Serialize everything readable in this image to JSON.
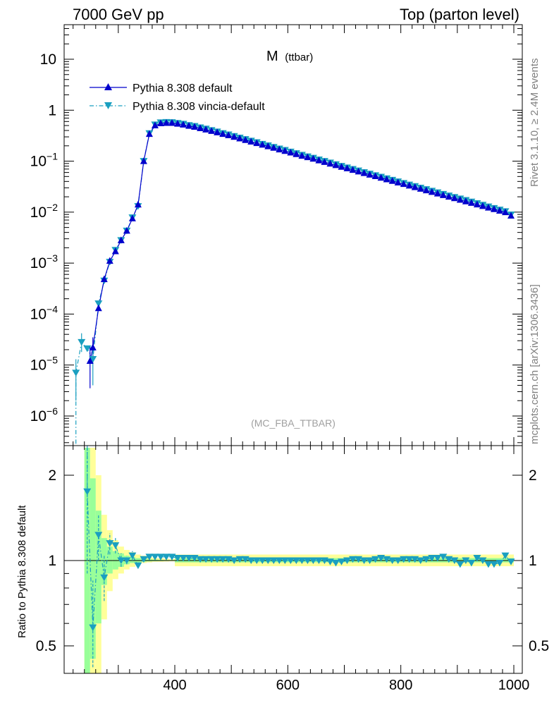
{
  "header": {
    "left": "7000 GeV pp",
    "right": "Top (parton level)"
  },
  "side_labels": {
    "rivet": "Rivet 3.1.10, ≥ 2.4M events",
    "source": "mcplots.cern.ch [arXiv:1306.3436]"
  },
  "plot_title": {
    "main": "M",
    "sub": "(ttbar)"
  },
  "analysis_label": "(MC_FBA_TTBAR)",
  "colors": {
    "series1": "#0000cc",
    "series2": "#1a9fc0",
    "band_yellow": "#ffff99",
    "band_green": "#99ff99"
  },
  "chart_data": [
    {
      "type": "line",
      "scale": "log",
      "xlim": [
        200,
        1000
      ],
      "ylim": [
        3e-07,
        40
      ],
      "x_ticks": [
        400,
        600,
        800,
        1000
      ],
      "y_tick_labels": [
        {
          "value": 10,
          "base": "10",
          "exp": ""
        },
        {
          "value": 1,
          "base": "1",
          "exp": ""
        },
        {
          "value": 0.1,
          "base": "10",
          "exp": "−1"
        },
        {
          "value": 0.01,
          "base": "10",
          "exp": "−2"
        },
        {
          "value": 0.001,
          "base": "10",
          "exp": "−3"
        },
        {
          "value": 0.0001,
          "base": "10",
          "exp": "−4"
        },
        {
          "value": 1e-05,
          "base": "10",
          "exp": "−5"
        },
        {
          "value": 1e-06,
          "base": "10",
          "exp": "−6"
        }
      ],
      "legend_position": "top-left",
      "series": [
        {
          "name": "Pythia 8.308 default",
          "marker": "triangle-up",
          "line": "solid",
          "x": [
            250,
            255,
            265,
            275,
            285,
            295,
            305,
            315,
            325,
            335,
            345,
            355,
            365,
            375,
            385,
            395,
            405,
            415,
            425,
            435,
            445,
            455,
            465,
            475,
            485,
            495,
            505,
            515,
            525,
            535,
            545,
            555,
            565,
            575,
            585,
            595,
            605,
            615,
            625,
            635,
            645,
            655,
            665,
            675,
            685,
            695,
            705,
            715,
            725,
            735,
            745,
            755,
            765,
            775,
            785,
            795,
            805,
            815,
            825,
            835,
            845,
            855,
            865,
            875,
            885,
            895,
            905,
            915,
            925,
            935,
            945,
            955,
            965,
            975,
            985,
            995
          ],
          "y": [
            1.2e-05,
            2.2e-05,
            0.00013,
            0.00048,
            0.0011,
            0.0017,
            0.0028,
            0.0043,
            0.0075,
            0.014,
            0.1,
            0.34,
            0.5,
            0.55,
            0.56,
            0.56,
            0.54,
            0.52,
            0.49,
            0.47,
            0.44,
            0.415,
            0.39,
            0.365,
            0.34,
            0.32,
            0.298,
            0.278,
            0.259,
            0.241,
            0.225,
            0.209,
            0.195,
            0.182,
            0.169,
            0.158,
            0.147,
            0.137,
            0.127,
            0.119,
            0.111,
            0.103,
            0.096,
            0.089,
            0.083,
            0.077,
            0.072,
            0.067,
            0.0625,
            0.058,
            0.054,
            0.0505,
            0.047,
            0.0438,
            0.0408,
            0.038,
            0.0354,
            0.033,
            0.0307,
            0.0286,
            0.0266,
            0.0248,
            0.0231,
            0.0215,
            0.02,
            0.0187,
            0.0174,
            0.0162,
            0.0151,
            0.0141,
            0.0131,
            0.0122,
            0.0114,
            0.0106,
            0.0099,
            0.0085
          ]
        },
        {
          "name": "Pythia 8.308 vincia-default",
          "marker": "triangle-down",
          "line": "dash-dot",
          "x": [
            225,
            235,
            245,
            255,
            265,
            275,
            285,
            295,
            305,
            315,
            325,
            335,
            345,
            355,
            365,
            375,
            385,
            395,
            405,
            415,
            425,
            435,
            445,
            455,
            465,
            475,
            485,
            495,
            505,
            515,
            525,
            535,
            545,
            555,
            565,
            575,
            585,
            595,
            605,
            615,
            625,
            635,
            645,
            655,
            665,
            675,
            685,
            695,
            705,
            715,
            725,
            735,
            745,
            755,
            765,
            775,
            785,
            795,
            805,
            815,
            825,
            835,
            845,
            855,
            865,
            875,
            885,
            895,
            905,
            915,
            925,
            935,
            945,
            955,
            965,
            975,
            985,
            995
          ],
          "y": [
            7e-06,
            2.8e-05,
            2.1e-05,
            1.3e-05,
            0.00016,
            0.00045,
            0.00105,
            0.0018,
            0.0028,
            0.0043,
            0.0078,
            0.013,
            0.1,
            0.35,
            0.52,
            0.57,
            0.58,
            0.575,
            0.555,
            0.535,
            0.505,
            0.485,
            0.455,
            0.43,
            0.403,
            0.377,
            0.352,
            0.331,
            0.308,
            0.287,
            0.268,
            0.249,
            0.233,
            0.216,
            0.202,
            0.188,
            0.175,
            0.164,
            0.152,
            0.142,
            0.132,
            0.123,
            0.115,
            0.107,
            0.1,
            0.093,
            0.086,
            0.08,
            0.0745,
            0.0695,
            0.065,
            0.0603,
            0.0562,
            0.0524,
            0.0489,
            0.0456,
            0.0425,
            0.0396,
            0.0369,
            0.0344,
            0.0321,
            0.0299,
            0.0279,
            0.026,
            0.0242,
            0.0225,
            0.021,
            0.0196,
            0.0183,
            0.0171,
            0.0159,
            0.0148,
            0.0138,
            0.0128,
            0.0119,
            0.0111,
            0.0103,
            0.0089
          ]
        }
      ]
    },
    {
      "type": "line",
      "scale": "log",
      "ylabel": "Ratio to Pythia 8.308 default",
      "xlim": [
        200,
        1000
      ],
      "ylim": [
        0.42,
        2.35
      ],
      "x_ticks": [
        400,
        600,
        800,
        1000
      ],
      "y_tick_labels": [
        {
          "value": 2,
          "label": "2"
        },
        {
          "value": 1,
          "label": "1"
        },
        {
          "value": 0.5,
          "label": "0.5"
        }
      ],
      "bands": {
        "x_edges": [
          240,
          250,
          260,
          270,
          280,
          290,
          300,
          310,
          320,
          330,
          340,
          350,
          360,
          370,
          380,
          390,
          400
        ],
        "yellow_low": [
          0.28,
          0.28,
          0.35,
          0.62,
          0.78,
          0.86,
          0.9,
          0.93,
          0.95,
          0.97,
          0.98,
          0.985,
          0.99,
          0.99,
          0.992,
          0.994
        ],
        "yellow_high": [
          2.5,
          2.5,
          2.0,
          1.45,
          1.28,
          1.18,
          1.12,
          1.09,
          1.07,
          1.05,
          1.04,
          1.03,
          1.02,
          1.02,
          1.015,
          1.012
        ],
        "green_low": [
          0.34,
          0.45,
          0.6,
          0.82,
          0.9,
          0.93,
          0.95,
          0.97,
          0.98,
          0.985,
          0.99,
          0.993,
          0.995,
          0.996,
          0.997,
          0.998
        ],
        "green_high": [
          2.5,
          1.95,
          1.5,
          1.2,
          1.12,
          1.08,
          1.06,
          1.04,
          1.03,
          1.02,
          1.015,
          1.01,
          1.008,
          1.006,
          1.005,
          1.004
        ],
        "tail_low": 0.955,
        "tail_high": 1.05
      },
      "series": [
        {
          "name": "Pythia 8.308 vincia-default",
          "marker": "triangle-down",
          "x": [
            245,
            255,
            265,
            275,
            285,
            295,
            305,
            315,
            325,
            335,
            345,
            355,
            365,
            375,
            385,
            395,
            405,
            415,
            425,
            435,
            445,
            455,
            465,
            475,
            485,
            495,
            505,
            515,
            525,
            535,
            545,
            555,
            565,
            575,
            585,
            595,
            605,
            615,
            625,
            635,
            645,
            655,
            665,
            675,
            685,
            695,
            705,
            715,
            725,
            735,
            745,
            755,
            765,
            775,
            785,
            795,
            805,
            815,
            825,
            835,
            845,
            855,
            865,
            875,
            885,
            895,
            905,
            915,
            925,
            935,
            945,
            955,
            965,
            975,
            985,
            995
          ],
          "y": [
            1.75,
            0.58,
            1.23,
            0.87,
            1.15,
            1.13,
            1.0,
            1.0,
            1.04,
            0.96,
            1.01,
            1.03,
            1.03,
            1.03,
            1.03,
            1.03,
            1.02,
            1.02,
            1.02,
            1.02,
            1.01,
            1.01,
            1.01,
            1.01,
            1.01,
            1.01,
            1.0,
            1.01,
            1.01,
            1.0,
            1.0,
            1.0,
            1.0,
            1.0,
            1.0,
            1.0,
            1.0,
            1.0,
            1.0,
            1.0,
            1.0,
            1.0,
            1.0,
            0.99,
            0.98,
            0.99,
            1.0,
            1.01,
            1.01,
            1.0,
            1.0,
            1.01,
            1.02,
            1.01,
            1.0,
            1.0,
            1.01,
            1.01,
            1.01,
            1.0,
            1.01,
            1.02,
            1.02,
            1.03,
            1.01,
            1.0,
            0.97,
            1.0,
            0.98,
            1.02,
            1.0,
            0.97,
            0.97,
            0.98,
            1.04,
            0.99
          ]
        }
      ]
    }
  ]
}
